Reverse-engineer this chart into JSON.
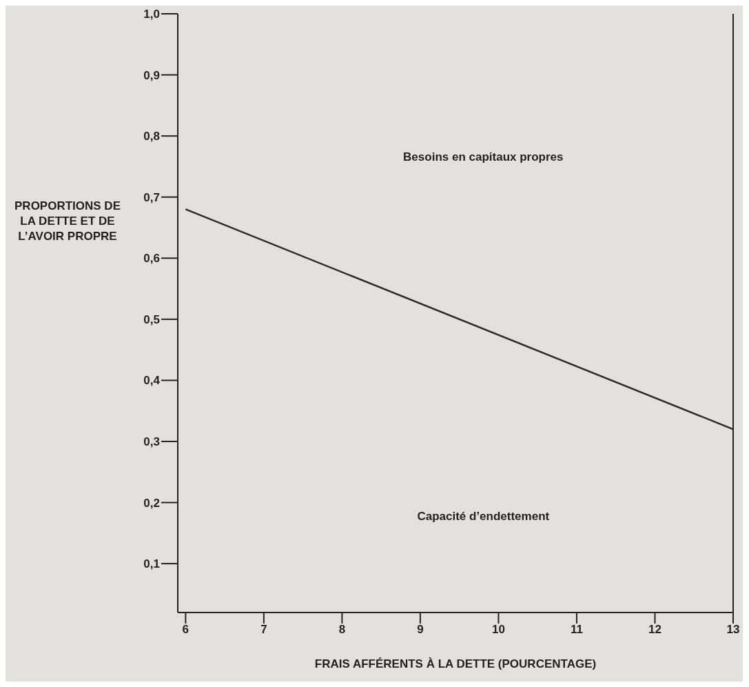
{
  "chart_data": {
    "type": "line",
    "xlabel": "FRAIS AFFÉRENTS À LA DETTE (POURCENTAGE)",
    "ylabel": "PROPORTIONS DE LA DETTE ET DE L’AVOIR PROPRE",
    "annotations": [
      "Besoins en capitaux propres",
      "Capacité d’endettement"
    ],
    "x": [
      6,
      13
    ],
    "series": [
      {
        "color": "#2a2a2a",
        "values": [
          0.68,
          0.32
        ]
      }
    ],
    "xlim": [
      5.9,
      13
    ],
    "xticks": [
      6,
      7,
      8,
      9,
      10,
      11,
      12,
      13
    ],
    "ylim": [
      0.02,
      1
    ],
    "yticks": [
      {
        "value": 0.1,
        "label": "0,1"
      },
      {
        "value": 0.2,
        "label": "0,2"
      },
      {
        "value": 0.3,
        "label": "0,3"
      },
      {
        "value": 0.4,
        "label": "0,4"
      },
      {
        "value": 0.5,
        "label": "0,5"
      },
      {
        "value": 0.6,
        "label": "0,6"
      },
      {
        "value": 0.7,
        "label": "0,7"
      },
      {
        "value": 0.8,
        "label": "0,8"
      },
      {
        "value": 0.9,
        "label": "0,9"
      },
      {
        "value": 1,
        "label": "1,0"
      }
    ],
    "grid": false,
    "marker": "none",
    "line_style": "solid"
  }
}
